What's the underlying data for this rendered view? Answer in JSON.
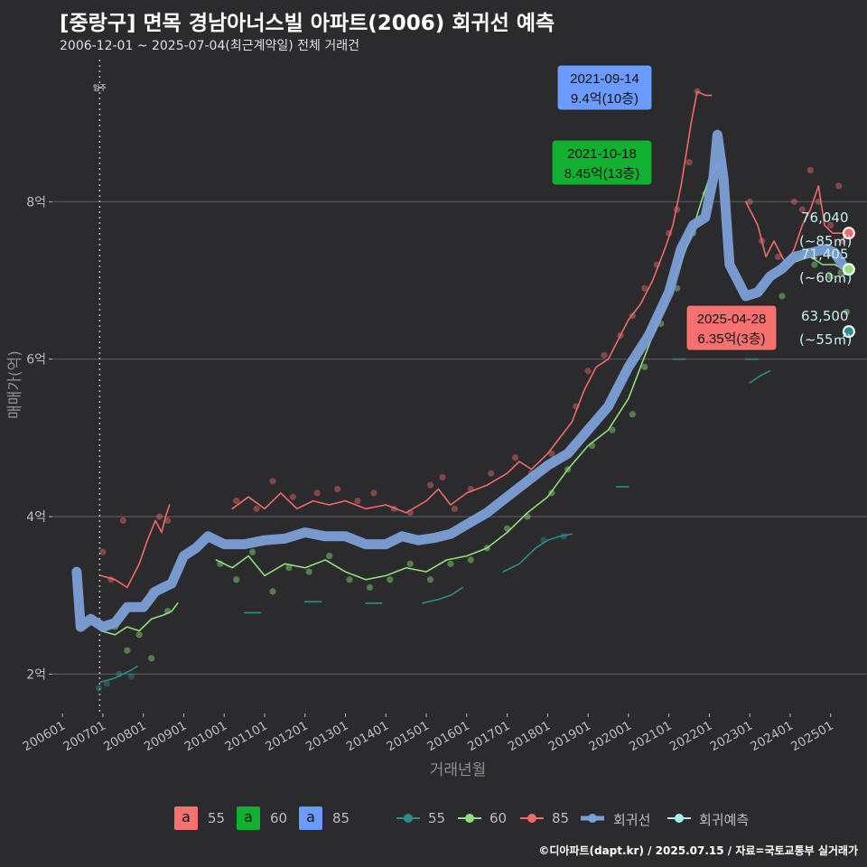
{
  "title": "[중랑구] 면목 경남아너스빌 아파트(2006) 회귀선 예측",
  "subtitle": "2006-12-01 ~ 2025-07-04(최근계약일) 전체 거래건",
  "footer": "©디아파트(dapt.kr) / 2025.07.15 / 자료=국토교통부 실거래가",
  "colors": {
    "bg": "#2b2b2e",
    "s55": "#2a8c8c",
    "s60": "#8fe07a",
    "s85": "#f06a6a",
    "reg": "#7b9fd6",
    "pred": "#a6f0f0",
    "b55": "#f87171",
    "b60": "#10b030",
    "b85": "#6b9bff"
  },
  "chart_data": {
    "type": "line",
    "xlabel": "거래년월",
    "ylabel": "매매가(억)",
    "ylim": [
      1.5,
      9.85
    ],
    "xlim": [
      2005.75,
      2025.9
    ],
    "yticks": [
      {
        "v": 2,
        "label": "2억"
      },
      {
        "v": 4,
        "label": "4억"
      },
      {
        "v": 6,
        "label": "6억"
      },
      {
        "v": 8,
        "label": "8억"
      }
    ],
    "xticks": [
      "200601",
      "200701",
      "200801",
      "200901",
      "201001",
      "201101",
      "201201",
      "201301",
      "201401",
      "201501",
      "201601",
      "201701",
      "201801",
      "201901",
      "202001",
      "202101",
      "202201",
      "202301",
      "202401",
      "202501"
    ],
    "move_in": {
      "x": 2006.92,
      "label": "입주"
    },
    "series": [
      {
        "name": "85",
        "points": [
          [
            2006.95,
            3.25
          ],
          [
            2007.3,
            3.2
          ],
          [
            2007.6,
            3.1
          ],
          [
            2007.9,
            3.4
          ],
          [
            2008.1,
            3.7
          ],
          [
            2008.3,
            3.95
          ],
          [
            2008.45,
            3.8
          ],
          [
            2008.55,
            4.0
          ],
          [
            2008.65,
            4.15
          ],
          [
            null,
            null
          ],
          [
            2010.2,
            4.1
          ],
          [
            2010.6,
            4.25
          ],
          [
            2011.0,
            4.1
          ],
          [
            2011.4,
            4.3
          ],
          [
            2011.8,
            4.1
          ],
          [
            2012.2,
            4.2
          ],
          [
            2012.6,
            4.15
          ],
          [
            2013.0,
            4.2
          ],
          [
            2013.5,
            4.1
          ],
          [
            2014.0,
            4.15
          ],
          [
            2014.5,
            4.05
          ],
          [
            2015.0,
            4.2
          ],
          [
            2015.3,
            4.35
          ],
          [
            2015.6,
            4.15
          ],
          [
            2016.0,
            4.3
          ],
          [
            2016.5,
            4.4
          ],
          [
            2017.0,
            4.55
          ],
          [
            2017.3,
            4.7
          ],
          [
            2017.6,
            4.6
          ],
          [
            2018.0,
            4.8
          ],
          [
            2018.3,
            5.0
          ],
          [
            2018.6,
            5.2
          ],
          [
            2018.9,
            5.6
          ],
          [
            2019.2,
            5.9
          ],
          [
            2019.5,
            6.0
          ],
          [
            2019.8,
            6.3
          ],
          [
            2020.0,
            6.5
          ],
          [
            2020.3,
            6.7
          ],
          [
            2020.6,
            7.0
          ],
          [
            2020.9,
            7.4
          ],
          [
            2021.1,
            7.7
          ],
          [
            2021.3,
            8.2
          ],
          [
            2021.55,
            9.0
          ],
          [
            2021.7,
            9.4
          ],
          [
            2021.9,
            9.35
          ],
          [
            2022.05,
            9.35
          ],
          [
            null,
            null
          ],
          [
            2022.9,
            8.0
          ],
          [
            2023.2,
            7.7
          ],
          [
            2023.4,
            7.3
          ],
          [
            2023.6,
            7.5
          ],
          [
            2023.9,
            7.2
          ],
          [
            2024.1,
            7.4
          ],
          [
            2024.3,
            7.7
          ],
          [
            2024.5,
            7.9
          ],
          [
            2024.7,
            8.2
          ],
          [
            2024.85,
            7.7
          ],
          [
            2025.05,
            7.6
          ],
          [
            2025.3,
            7.6
          ]
        ]
      },
      {
        "name": "60",
        "points": [
          [
            2006.95,
            2.55
          ],
          [
            2007.3,
            2.5
          ],
          [
            2007.6,
            2.6
          ],
          [
            2007.9,
            2.55
          ],
          [
            2008.2,
            2.7
          ],
          [
            2008.5,
            2.75
          ],
          [
            2008.7,
            2.8
          ],
          [
            2008.85,
            2.9
          ],
          [
            null,
            null
          ],
          [
            2009.8,
            3.45
          ],
          [
            2010.2,
            3.35
          ],
          [
            2010.6,
            3.5
          ],
          [
            2011.0,
            3.25
          ],
          [
            2011.5,
            3.4
          ],
          [
            2012.0,
            3.35
          ],
          [
            2012.5,
            3.45
          ],
          [
            2013.0,
            3.3
          ],
          [
            2013.5,
            3.2
          ],
          [
            2014.0,
            3.25
          ],
          [
            2014.5,
            3.35
          ],
          [
            2015.0,
            3.3
          ],
          [
            2015.5,
            3.45
          ],
          [
            2016.0,
            3.5
          ],
          [
            2016.5,
            3.6
          ],
          [
            2017.0,
            3.8
          ],
          [
            2017.5,
            4.05
          ],
          [
            2018.0,
            4.25
          ],
          [
            2018.5,
            4.6
          ],
          [
            2019.0,
            4.9
          ],
          [
            2019.5,
            5.1
          ],
          [
            2020.0,
            5.5
          ],
          [
            2020.3,
            5.9
          ],
          [
            2020.6,
            6.3
          ],
          [
            2020.9,
            6.7
          ],
          [
            2021.2,
            7.1
          ],
          [
            2021.5,
            7.5
          ],
          [
            2021.8,
            8.0
          ],
          [
            2022.0,
            8.3
          ],
          [
            2022.2,
            8.45
          ],
          [
            null,
            null
          ],
          [
            2023.9,
            7.2
          ],
          [
            2024.2,
            7.25
          ],
          [
            2024.5,
            7.3
          ],
          [
            2024.8,
            7.2
          ],
          [
            2025.1,
            7.2
          ],
          [
            2025.3,
            7.15
          ]
        ]
      },
      {
        "name": "55",
        "points": [
          [
            2006.95,
            1.9
          ],
          [
            2007.3,
            1.95
          ],
          [
            2007.5,
            2.0
          ],
          [
            2007.7,
            2.05
          ],
          [
            2007.85,
            2.1
          ],
          [
            null,
            null
          ],
          [
            2010.5,
            2.78
          ],
          [
            2010.9,
            2.78
          ],
          [
            null,
            null
          ],
          [
            2012.0,
            2.92
          ],
          [
            2012.4,
            2.92
          ],
          [
            null,
            null
          ],
          [
            2013.5,
            2.9
          ],
          [
            2013.9,
            2.9
          ],
          [
            null,
            null
          ],
          [
            2014.9,
            2.9
          ],
          [
            2015.3,
            2.95
          ],
          [
            2015.6,
            3.0
          ],
          [
            2015.9,
            3.1
          ],
          [
            null,
            null
          ],
          [
            2016.9,
            3.3
          ],
          [
            2017.3,
            3.4
          ],
          [
            2017.7,
            3.6
          ],
          [
            2018.0,
            3.7
          ],
          [
            2018.3,
            3.75
          ],
          [
            2018.6,
            3.78
          ],
          [
            null,
            null
          ],
          [
            2019.7,
            4.38
          ],
          [
            2020.0,
            4.38
          ],
          [
            null,
            null
          ],
          [
            2021.1,
            6.0
          ],
          [
            2021.4,
            6.0
          ],
          [
            null,
            null
          ],
          [
            2022.9,
            6.0
          ],
          [
            2023.2,
            6.0
          ],
          [
            null,
            null
          ],
          [
            2023.0,
            5.7
          ],
          [
            2023.3,
            5.8
          ],
          [
            2023.5,
            5.85
          ]
        ]
      },
      {
        "name": "회귀선",
        "points": [
          [
            2006.35,
            3.3
          ],
          [
            2006.45,
            2.6
          ],
          [
            2006.7,
            2.7
          ],
          [
            2007.0,
            2.6
          ],
          [
            2007.3,
            2.65
          ],
          [
            2007.6,
            2.85
          ],
          [
            2008.0,
            2.85
          ],
          [
            2008.3,
            3.05
          ],
          [
            2008.7,
            3.15
          ],
          [
            2009.0,
            3.5
          ],
          [
            2009.3,
            3.6
          ],
          [
            2009.6,
            3.75
          ],
          [
            2010.0,
            3.65
          ],
          [
            2010.5,
            3.65
          ],
          [
            2011.0,
            3.7
          ],
          [
            2011.5,
            3.72
          ],
          [
            2012.0,
            3.8
          ],
          [
            2012.5,
            3.75
          ],
          [
            2013.0,
            3.75
          ],
          [
            2013.5,
            3.65
          ],
          [
            2014.0,
            3.65
          ],
          [
            2014.4,
            3.75
          ],
          [
            2014.8,
            3.7
          ],
          [
            2015.2,
            3.73
          ],
          [
            2015.6,
            3.78
          ],
          [
            2016.0,
            3.9
          ],
          [
            2016.5,
            4.05
          ],
          [
            2017.0,
            4.25
          ],
          [
            2017.5,
            4.45
          ],
          [
            2018.0,
            4.65
          ],
          [
            2018.5,
            4.8
          ],
          [
            2019.0,
            5.1
          ],
          [
            2019.5,
            5.4
          ],
          [
            2020.0,
            5.9
          ],
          [
            2020.5,
            6.3
          ],
          [
            2021.0,
            6.85
          ],
          [
            2021.3,
            7.4
          ],
          [
            2021.6,
            7.7
          ],
          [
            2021.9,
            7.8
          ],
          [
            2022.1,
            8.3
          ],
          [
            2022.2,
            8.85
          ],
          [
            2022.35,
            8.3
          ],
          [
            2022.5,
            7.2
          ],
          [
            2022.7,
            7.0
          ],
          [
            2022.9,
            6.8
          ],
          [
            2023.2,
            6.85
          ],
          [
            2023.5,
            7.05
          ],
          [
            2023.8,
            7.15
          ],
          [
            2024.1,
            7.3
          ],
          [
            2024.5,
            7.35
          ],
          [
            2024.9,
            7.4
          ],
          [
            2025.1,
            7.35
          ],
          [
            2025.3,
            7.2
          ]
        ]
      }
    ],
    "scatter_points": {
      "85": [
        [
          2007.0,
          3.55
        ],
        [
          2007.2,
          3.2
        ],
        [
          2007.5,
          3.95
        ],
        [
          2008.2,
          3.05
        ],
        [
          2008.4,
          4.0
        ],
        [
          2008.6,
          3.95
        ],
        [
          2010.3,
          4.2
        ],
        [
          2010.8,
          4.1
        ],
        [
          2011.2,
          4.45
        ],
        [
          2011.7,
          4.25
        ],
        [
          2012.3,
          4.3
        ],
        [
          2012.8,
          4.35
        ],
        [
          2013.3,
          4.2
        ],
        [
          2013.7,
          4.3
        ],
        [
          2014.2,
          4.1
        ],
        [
          2014.6,
          4.05
        ],
        [
          2015.1,
          4.4
        ],
        [
          2015.4,
          4.5
        ],
        [
          2015.7,
          4.1
        ],
        [
          2016.1,
          4.35
        ],
        [
          2016.6,
          4.55
        ],
        [
          2017.2,
          4.75
        ],
        [
          2017.6,
          4.55
        ],
        [
          2018.1,
          4.8
        ],
        [
          2018.7,
          5.4
        ],
        [
          2019.0,
          5.85
        ],
        [
          2019.4,
          6.05
        ],
        [
          2019.8,
          6.3
        ],
        [
          2020.1,
          6.55
        ],
        [
          2020.4,
          6.9
        ],
        [
          2020.7,
          7.2
        ],
        [
          2021.0,
          7.6
        ],
        [
          2021.2,
          7.9
        ],
        [
          2021.5,
          8.5
        ],
        [
          2021.7,
          9.4
        ],
        [
          2023.0,
          8.0
        ],
        [
          2023.3,
          7.5
        ],
        [
          2023.7,
          7.3
        ],
        [
          2024.1,
          8.0
        ],
        [
          2024.3,
          7.9
        ],
        [
          2024.5,
          8.4
        ],
        [
          2024.7,
          8.0
        ],
        [
          2025.0,
          7.7
        ],
        [
          2025.2,
          8.2
        ],
        [
          2025.3,
          7.5
        ]
      ],
      "60": [
        [
          2007.3,
          2.6
        ],
        [
          2007.6,
          2.3
        ],
        [
          2007.9,
          2.5
        ],
        [
          2008.2,
          2.2
        ],
        [
          2008.6,
          2.8
        ],
        [
          2009.9,
          3.4
        ],
        [
          2010.3,
          3.2
        ],
        [
          2010.7,
          3.55
        ],
        [
          2011.2,
          3.05
        ],
        [
          2011.6,
          3.35
        ],
        [
          2012.1,
          3.3
        ],
        [
          2012.6,
          3.5
        ],
        [
          2013.1,
          3.2
        ],
        [
          2013.6,
          3.1
        ],
        [
          2014.1,
          3.2
        ],
        [
          2014.6,
          3.4
        ],
        [
          2015.1,
          3.2
        ],
        [
          2015.6,
          3.4
        ],
        [
          2016.1,
          3.45
        ],
        [
          2016.5,
          3.6
        ],
        [
          2017.0,
          3.85
        ],
        [
          2017.5,
          4.0
        ],
        [
          2018.1,
          4.3
        ],
        [
          2018.5,
          4.6
        ],
        [
          2019.1,
          4.9
        ],
        [
          2019.6,
          5.1
        ],
        [
          2020.1,
          5.3
        ],
        [
          2020.4,
          5.9
        ],
        [
          2020.8,
          6.45
        ],
        [
          2021.2,
          6.9
        ],
        [
          2021.6,
          7.6
        ],
        [
          2021.9,
          8.1
        ],
        [
          2022.2,
          8.45
        ],
        [
          2023.8,
          6.8
        ],
        [
          2024.3,
          7.3
        ],
        [
          2024.6,
          7.2
        ],
        [
          2025.0,
          7.05
        ],
        [
          2025.25,
          7.1
        ],
        [
          2025.4,
          6.6
        ]
      ],
      "55": [
        [
          2006.9,
          1.82
        ],
        [
          2007.1,
          1.88
        ],
        [
          2007.4,
          2.0
        ],
        [
          2007.7,
          1.97
        ],
        [
          2017.9,
          3.7
        ],
        [
          2018.4,
          3.75
        ]
      ]
    },
    "annotations": [
      {
        "x": 2021.7,
        "y": 9.4,
        "date": "2021-09-14",
        "price": "9.4억(10층)",
        "color": "#6b9bff"
      },
      {
        "x": 2021.8,
        "y": 8.45,
        "date": "2021-10-18",
        "price": "8.45억(13층)",
        "color": "#10b030"
      },
      {
        "x": 2025.0,
        "y": 6.35,
        "date": "2025-04-28",
        "price": "6.35억(3층)",
        "color": "#f87171"
      }
    ],
    "end_labels": [
      {
        "name": "85",
        "value": "76,040",
        "size": "(~85㎡)",
        "y": 7.6
      },
      {
        "name": "60",
        "value": "71,405",
        "size": "(~60㎡)",
        "y": 7.14
      },
      {
        "name": "55",
        "value": "63,500",
        "size": "(~55㎡)",
        "y": 6.35
      }
    ],
    "legend": {
      "boxes": [
        {
          "glyph": "a",
          "label": "55"
        },
        {
          "glyph": "a",
          "label": "60"
        },
        {
          "glyph": "a",
          "label": "85"
        }
      ],
      "lines": [
        {
          "label": "55"
        },
        {
          "label": "60"
        },
        {
          "label": "85"
        },
        {
          "label": "회귀선"
        },
        {
          "label": "회귀예측"
        }
      ]
    }
  }
}
